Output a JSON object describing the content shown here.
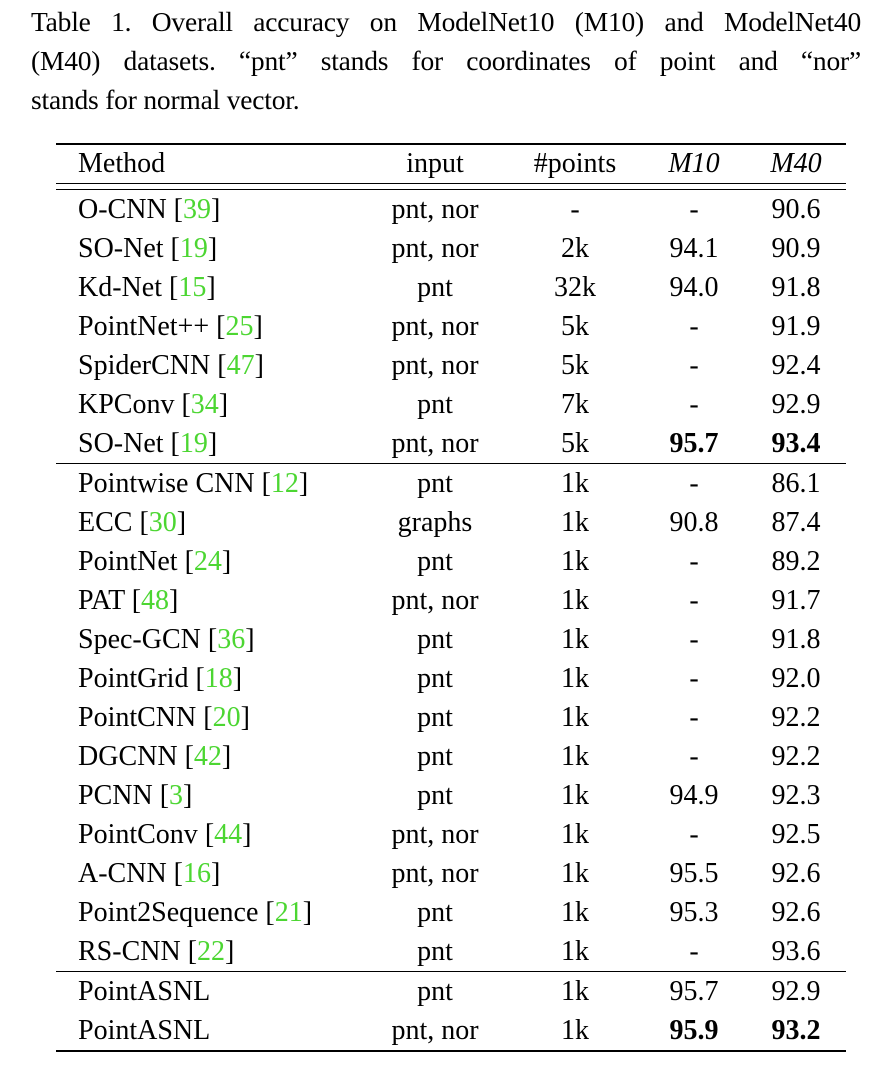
{
  "caption": {
    "line1": "Table 1. Overall accuracy on ModelNet10 (M10) and ModelNet40",
    "line2": "(M40) datasets.  “pnt” stands for coordinates of point and “nor”",
    "line3": "stands for normal vector."
  },
  "table": {
    "headers": {
      "method": "Method",
      "input": "input",
      "points": "#points",
      "m10": "M10",
      "m40": "M40"
    },
    "rows": [
      {
        "name": "O-CNN",
        "cite": "39",
        "input": "pnt, nor",
        "points": "-",
        "m10": "-",
        "m40": "90.6"
      },
      {
        "name": "SO-Net",
        "cite": "19",
        "input": "pnt, nor",
        "points": "2k",
        "m10": "94.1",
        "m40": "90.9"
      },
      {
        "name": "Kd-Net",
        "cite": "15",
        "input": "pnt",
        "points": "32k",
        "m10": "94.0",
        "m40": "91.8"
      },
      {
        "name": "PointNet++",
        "cite": "25",
        "input": "pnt, nor",
        "points": "5k",
        "m10": "-",
        "m40": "91.9"
      },
      {
        "name": "SpiderCNN",
        "cite": "47",
        "input": "pnt, nor",
        "points": "5k",
        "m10": "-",
        "m40": "92.4"
      },
      {
        "name": "KPConv",
        "cite": "34",
        "input": "pnt",
        "points": "7k",
        "m10": "-",
        "m40": "92.9"
      },
      {
        "name": "SO-Net",
        "cite": "19",
        "input": "pnt, nor",
        "points": "5k",
        "m10": "95.7",
        "m40": "93.4"
      },
      {
        "name": "Pointwise CNN",
        "cite": "12",
        "input": "pnt",
        "points": "1k",
        "m10": "-",
        "m40": "86.1"
      },
      {
        "name": "ECC",
        "cite": "30",
        "input": "graphs",
        "points": "1k",
        "m10": "90.8",
        "m40": "87.4"
      },
      {
        "name": "PointNet",
        "cite": "24",
        "input": "pnt",
        "points": "1k",
        "m10": "-",
        "m40": "89.2"
      },
      {
        "name": "PAT",
        "cite": "48",
        "input": "pnt, nor",
        "points": "1k",
        "m10": "-",
        "m40": "91.7"
      },
      {
        "name": "Spec-GCN",
        "cite": "36",
        "input": "pnt",
        "points": "1k",
        "m10": "-",
        "m40": "91.8"
      },
      {
        "name": "PointGrid",
        "cite": "18",
        "input": "pnt",
        "points": "1k",
        "m10": "-",
        "m40": "92.0"
      },
      {
        "name": "PointCNN",
        "cite": "20",
        "input": "pnt",
        "points": "1k",
        "m10": "-",
        "m40": "92.2"
      },
      {
        "name": "DGCNN",
        "cite": "42",
        "input": "pnt",
        "points": "1k",
        "m10": "-",
        "m40": "92.2"
      },
      {
        "name": "PCNN",
        "cite": "3",
        "input": "pnt",
        "points": "1k",
        "m10": "94.9",
        "m40": "92.3"
      },
      {
        "name": "PointConv",
        "cite": "44",
        "input": "pnt, nor",
        "points": "1k",
        "m10": "-",
        "m40": "92.5"
      },
      {
        "name": "A-CNN",
        "cite": "16",
        "input": "pnt, nor",
        "points": "1k",
        "m10": "95.5",
        "m40": "92.6"
      },
      {
        "name": "Point2Sequence",
        "cite": "21",
        "input": "pnt",
        "points": "1k",
        "m10": "95.3",
        "m40": "92.6"
      },
      {
        "name": "RS-CNN",
        "cite": "22",
        "input": "pnt",
        "points": "1k",
        "m10": "-",
        "m40": "93.6"
      },
      {
        "name": "PointASNL",
        "cite": "",
        "input": "pnt",
        "points": "1k",
        "m10": "95.7",
        "m40": "92.9"
      },
      {
        "name": "PointASNL",
        "cite": "",
        "input": "pnt, nor",
        "points": "1k",
        "m10": "95.9",
        "m40": "93.2"
      }
    ]
  }
}
